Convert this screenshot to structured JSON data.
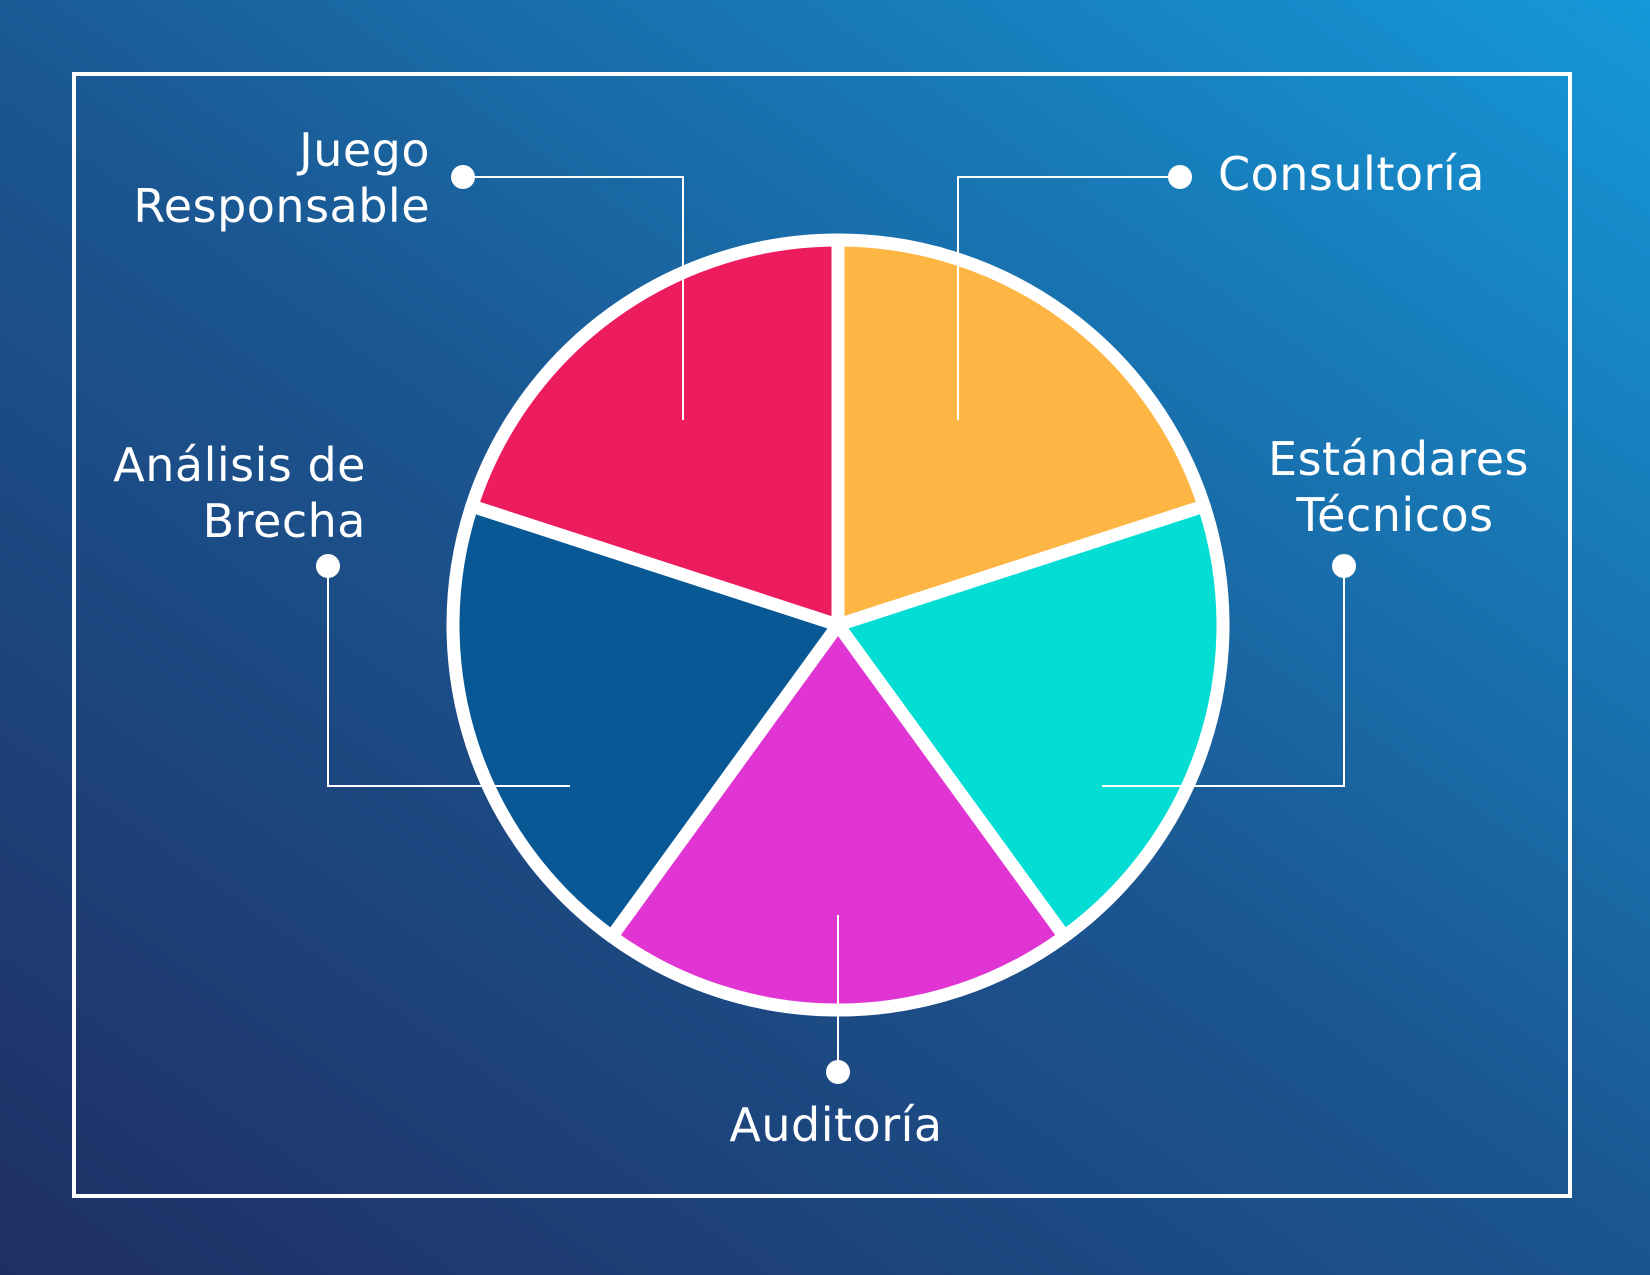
{
  "chart_data": {
    "type": "pie",
    "slices": [
      {
        "id": "consultoria",
        "lines": [
          "Consultoría"
        ],
        "value": 20,
        "color": "#FDB643"
      },
      {
        "id": "estandares",
        "lines": [
          "Estándares",
          "Técnicos"
        ],
        "value": 20,
        "color": "#03DDD4"
      },
      {
        "id": "auditoria",
        "lines": [
          "Auditoría"
        ],
        "value": 20,
        "color": "#E035D2"
      },
      {
        "id": "analisis",
        "lines": [
          "Análisis de",
          "Brecha"
        ],
        "value": 20,
        "color": "#075895"
      },
      {
        "id": "juego",
        "lines": [
          "Juego",
          "Responsable"
        ],
        "value": 20,
        "color": "#EC1C5E"
      }
    ],
    "legend": "callouts around pie"
  },
  "colors": {
    "background_start": "#1F2F63",
    "background_end": "#1598D8",
    "frame": "#FFFFFF",
    "separator": "#FFFFFF"
  }
}
